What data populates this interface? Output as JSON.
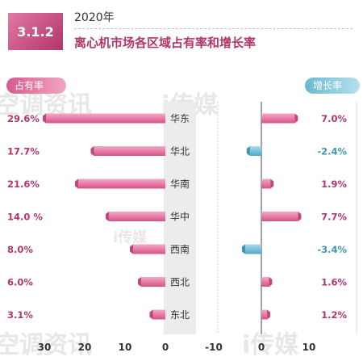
{
  "header": {
    "section": "3.1.2",
    "year": "2020年",
    "title": "离心机市场各区域占有率和增长率"
  },
  "legend": {
    "share": "占有率",
    "growth": "增长率"
  },
  "watermarks": [
    "空调资讯",
    "i传媒"
  ],
  "colors": {
    "accent": "#b2356c",
    "positive": "#d85a8c",
    "negative": "#5bb3cd"
  },
  "chart_data": {
    "type": "bar",
    "categories": [
      "华东",
      "华北",
      "华南",
      "华中",
      "西南",
      "西北",
      "东北"
    ],
    "series": [
      {
        "name": "占有率",
        "values": [
          29.6,
          17.7,
          21.6,
          14.0,
          8.0,
          6.0,
          3.1
        ],
        "labels": [
          "29.6%",
          "17.7%",
          "21.6%",
          "14.0 %",
          "8.0%",
          "6.0%",
          "3.1%"
        ]
      },
      {
        "name": "增长率",
        "values": [
          7.0,
          -2.4,
          1.9,
          7.7,
          -3.4,
          1.6,
          1.2
        ],
        "labels": [
          "7.0%",
          "-2.4%",
          "1.9%",
          "7.7%",
          "-3.4%",
          "1.6%",
          "1.2%"
        ]
      }
    ],
    "share_axis": {
      "ticks": [
        30,
        20,
        10,
        0
      ],
      "range": [
        0,
        30
      ]
    },
    "growth_axis": {
      "ticks": [
        -10,
        0,
        10
      ],
      "range": [
        -10,
        10
      ]
    }
  }
}
